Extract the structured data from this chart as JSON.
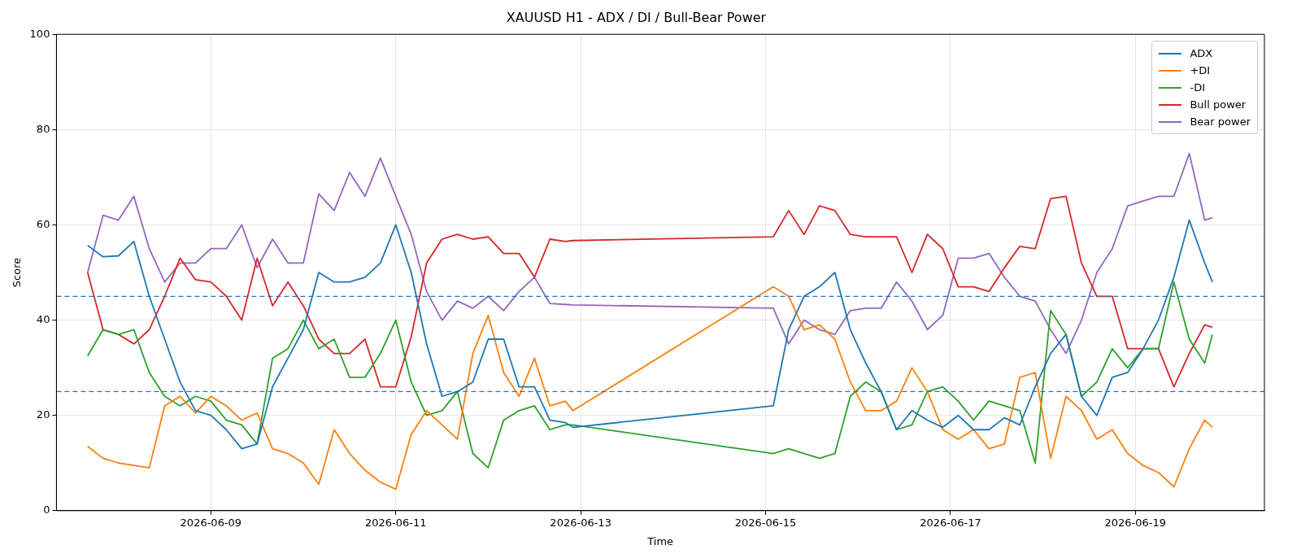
{
  "chart_data": {
    "type": "line",
    "title": "XAUUSD H1 - ADX / DI / Bull-Bear Power",
    "xlabel": "Time",
    "ylabel": "Score",
    "x": [
      "2026-06-07T16:00",
      "2026-06-07T20:00",
      "2026-06-08T00:00",
      "2026-06-08T04:00",
      "2026-06-08T08:00",
      "2026-06-08T12:00",
      "2026-06-08T16:00",
      "2026-06-08T20:00",
      "2026-06-09T00:00",
      "2026-06-09T04:00",
      "2026-06-09T08:00",
      "2026-06-09T12:00",
      "2026-06-09T16:00",
      "2026-06-09T20:00",
      "2026-06-10T00:00",
      "2026-06-10T04:00",
      "2026-06-10T08:00",
      "2026-06-10T12:00",
      "2026-06-10T16:00",
      "2026-06-10T20:00",
      "2026-06-11T00:00",
      "2026-06-11T04:00",
      "2026-06-11T08:00",
      "2026-06-11T12:00",
      "2026-06-11T16:00",
      "2026-06-11T20:00",
      "2026-06-12T00:00",
      "2026-06-12T04:00",
      "2026-06-12T08:00",
      "2026-06-12T12:00",
      "2026-06-12T16:00",
      "2026-06-12T20:00",
      "2026-06-12T22:00",
      "2026-06-15T02:00",
      "2026-06-15T06:00",
      "2026-06-15T10:00",
      "2026-06-15T14:00",
      "2026-06-15T18:00",
      "2026-06-15T22:00",
      "2026-06-16T02:00",
      "2026-06-16T06:00",
      "2026-06-16T10:00",
      "2026-06-16T14:00",
      "2026-06-16T18:00",
      "2026-06-16T22:00",
      "2026-06-17T02:00",
      "2026-06-17T06:00",
      "2026-06-17T10:00",
      "2026-06-17T14:00",
      "2026-06-17T18:00",
      "2026-06-17T22:00",
      "2026-06-18T02:00",
      "2026-06-18T06:00",
      "2026-06-18T10:00",
      "2026-06-18T14:00",
      "2026-06-18T18:00",
      "2026-06-18T22:00",
      "2026-06-19T02:00",
      "2026-06-19T06:00",
      "2026-06-19T10:00",
      "2026-06-19T14:00",
      "2026-06-19T18:00",
      "2026-06-19T20:00"
    ],
    "series": [
      {
        "name": "ADX",
        "color": "#1f77b4",
        "values": [
          55.7,
          53.3,
          53.5,
          56.5,
          45,
          36,
          27,
          21,
          20,
          17,
          13,
          14,
          26,
          32,
          38,
          50,
          48,
          48,
          49,
          52,
          60,
          50,
          35,
          24,
          25,
          27,
          36,
          36,
          26,
          26,
          19,
          18.5,
          17.5,
          22,
          38,
          45,
          47,
          50,
          38,
          31,
          25,
          17,
          21,
          19,
          17.5,
          20,
          17,
          17,
          19.5,
          18,
          26,
          33,
          37,
          24,
          20,
          28,
          29,
          34,
          40,
          49,
          61,
          52,
          48
        ]
      },
      {
        "name": "+DI",
        "color": "#ff7f0e",
        "values": [
          13.5,
          11,
          10,
          9.5,
          9,
          22,
          24,
          20.5,
          24,
          22,
          19,
          20.5,
          13,
          12,
          10,
          5.5,
          17,
          12,
          8.5,
          6,
          4.5,
          16,
          21,
          18,
          15,
          33,
          41,
          29,
          24,
          32,
          22,
          23,
          21,
          47,
          45,
          38,
          39,
          36,
          27,
          21,
          21,
          23,
          30,
          25,
          17,
          15,
          17,
          13,
          14,
          28,
          29,
          11,
          24,
          21,
          15,
          17,
          12,
          9.5,
          8,
          5,
          13,
          19,
          17.5
        ]
      },
      {
        "name": "-DI",
        "color": "#2ca02c",
        "values": [
          32.5,
          38,
          37,
          38,
          29,
          24,
          22,
          24,
          23,
          19,
          18,
          14,
          32,
          34,
          40,
          34,
          36,
          28,
          28,
          33,
          40,
          27,
          20,
          21,
          25,
          12,
          9,
          19,
          21,
          22,
          17,
          18,
          18,
          12,
          13,
          12,
          11,
          12,
          24,
          27,
          25,
          17,
          18,
          25,
          26,
          23,
          19,
          23,
          22,
          21,
          10,
          42,
          37,
          24,
          27,
          34,
          30,
          34,
          34,
          48,
          36,
          31,
          37
        ]
      },
      {
        "name": "Bull power",
        "color": "#d62728",
        "values": [
          50,
          38,
          37,
          35,
          38,
          45,
          53,
          48.5,
          48,
          45,
          40,
          53,
          43,
          48,
          43,
          36,
          33,
          33,
          36,
          26,
          26,
          36.5,
          52,
          57,
          58,
          57,
          57.5,
          54,
          54,
          49,
          57,
          56.5,
          56.7,
          57.5,
          63,
          58,
          64,
          63,
          58,
          57.5,
          57.5,
          57.5,
          50,
          58,
          55,
          47,
          47,
          46,
          51,
          55.5,
          55,
          65.5,
          66,
          52,
          45,
          45,
          34,
          34,
          34,
          26,
          33,
          39,
          38.5
        ]
      },
      {
        "name": "Bear power",
        "color": "#9467bd",
        "values": [
          50,
          62,
          61,
          66,
          55,
          48,
          52,
          52,
          55,
          55,
          60,
          51,
          57,
          52,
          52,
          66.5,
          63,
          71,
          66,
          74,
          66,
          58,
          46,
          40,
          44,
          42.5,
          45,
          42,
          46,
          49,
          43.5,
          43.3,
          43.2,
          42.5,
          35,
          40,
          38,
          37,
          42,
          42.5,
          42.5,
          48,
          44,
          38,
          41,
          53,
          53,
          54,
          49,
          45,
          44,
          38,
          33,
          40,
          50,
          55,
          64,
          65,
          66,
          66,
          75,
          61,
          61.5
        ]
      }
    ],
    "xlim": [
      "2026-06-07T07:54",
      "2026-06-20T09:30"
    ],
    "xticks": [
      "2026-06-09",
      "2026-06-11",
      "2026-06-13",
      "2026-06-15",
      "2026-06-17",
      "2026-06-19"
    ],
    "ylim": [
      0,
      100
    ],
    "yticks": [
      0,
      20,
      40,
      60,
      80,
      100
    ],
    "ref_lines": [
      {
        "axis": "y",
        "value": 45,
        "color": "#1f77b4",
        "line_style": "dashed"
      },
      {
        "axis": "y",
        "value": 25,
        "color": "#1f77b4",
        "line_style": "dashed"
      }
    ],
    "grid": true,
    "legend": "top right",
    "line_style": "solid"
  }
}
